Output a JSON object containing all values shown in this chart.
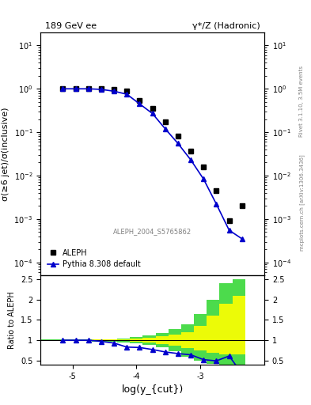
{
  "title_left": "189 GeV ee",
  "title_right": "γ*/Z (Hadronic)",
  "ylabel_main": "σ(≥6 jet)/σ(inclusive)",
  "ylabel_ratio": "Ratio to ALEPH",
  "xlabel": "log(y_{cut})",
  "right_label_top": "Rivet 3.1.10, 3.5M events",
  "right_label_bottom": "mcplots.cern.ch [arXiv:1306.3436]",
  "watermark": "ALEPH_2004_S5765862",
  "xlim": [
    -5.5,
    -2.0
  ],
  "main_ylim_log": [
    -4.5,
    1.5
  ],
  "ratio_ylim": [
    0.4,
    2.5
  ],
  "aleph_x": [
    -5.15,
    -4.95,
    -4.75,
    -4.55,
    -4.35,
    -4.15,
    -3.95,
    -3.75,
    -3.55,
    -3.35,
    -3.15,
    -2.95,
    -2.75,
    -2.55,
    -2.35
  ],
  "aleph_y": [
    1.0,
    1.0,
    1.0,
    1.0,
    0.95,
    0.9,
    0.55,
    0.35,
    0.17,
    0.082,
    0.036,
    0.016,
    0.0045,
    0.0009,
    0.002
  ],
  "pythia_x": [
    -5.15,
    -4.95,
    -4.75,
    -4.55,
    -4.35,
    -4.15,
    -3.95,
    -3.75,
    -3.55,
    -3.35,
    -3.15,
    -2.95,
    -2.75,
    -2.55,
    -2.35
  ],
  "pythia_y": [
    1.0,
    1.0,
    1.0,
    0.97,
    0.88,
    0.75,
    0.45,
    0.27,
    0.12,
    0.055,
    0.023,
    0.0083,
    0.0022,
    0.00055,
    0.00035
  ],
  "ratio_x": [
    -5.15,
    -4.95,
    -4.75,
    -4.55,
    -4.35,
    -4.15,
    -3.95,
    -3.75,
    -3.55,
    -3.35,
    -3.15,
    -2.95,
    -2.75,
    -2.55,
    -2.35
  ],
  "ratio_y": [
    1.0,
    1.0,
    1.0,
    0.97,
    0.93,
    0.83,
    0.82,
    0.77,
    0.71,
    0.67,
    0.64,
    0.52,
    0.49,
    0.61,
    0.175
  ],
  "band_x_edges": [
    -5.5,
    -5.3,
    -5.1,
    -4.9,
    -4.7,
    -4.5,
    -4.3,
    -4.1,
    -3.9,
    -3.7,
    -3.5,
    -3.3,
    -3.1,
    -2.9,
    -2.7,
    -2.5,
    -2.3
  ],
  "band_green_low": [
    0.98,
    0.98,
    0.98,
    0.98,
    0.97,
    0.97,
    0.95,
    0.93,
    0.88,
    0.82,
    0.72,
    0.6,
    0.5,
    0.42,
    0.4,
    0.4
  ],
  "band_green_high": [
    1.02,
    1.02,
    1.02,
    1.02,
    1.03,
    1.03,
    1.05,
    1.07,
    1.12,
    1.18,
    1.28,
    1.4,
    1.65,
    2.0,
    2.4,
    2.5
  ],
  "band_yellow_low": [
    0.99,
    0.99,
    0.99,
    0.99,
    0.985,
    0.985,
    0.975,
    0.965,
    0.94,
    0.91,
    0.86,
    0.8,
    0.75,
    0.68,
    0.65,
    0.65
  ],
  "band_yellow_high": [
    1.01,
    1.01,
    1.01,
    1.01,
    1.015,
    1.015,
    1.025,
    1.035,
    1.06,
    1.09,
    1.14,
    1.2,
    1.35,
    1.6,
    1.9,
    2.1
  ],
  "color_aleph": "#000000",
  "color_pythia": "#0000cc",
  "color_green_band": "#00cc00",
  "color_yellow_band": "#ffff00",
  "xticks": [
    -5,
    -4,
    -3
  ],
  "xtick_labels": [
    "-5",
    "-4",
    "-3"
  ]
}
